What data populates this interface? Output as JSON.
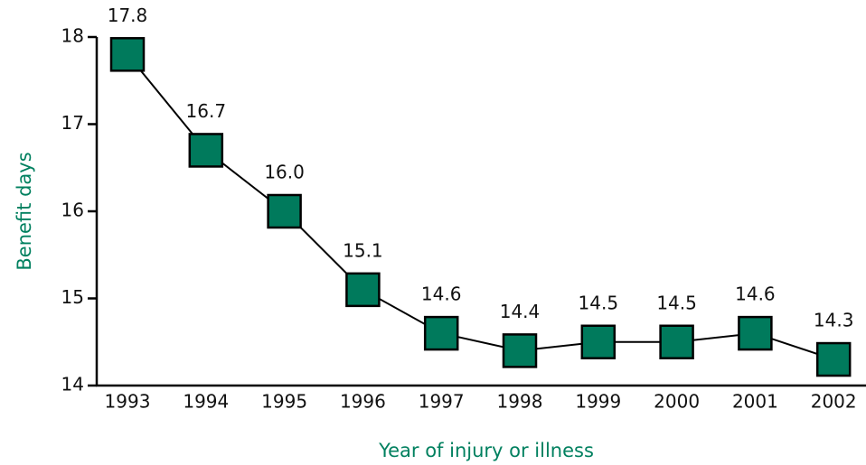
{
  "chart_data": {
    "type": "line",
    "x_label": "Year of injury or illness",
    "y_label": "Benefit days",
    "categories": [
      "1993",
      "1994",
      "1995",
      "1996",
      "1997",
      "1998",
      "1999",
      "2000",
      "2001",
      "2002"
    ],
    "values": [
      17.8,
      16.7,
      16.0,
      15.1,
      14.6,
      14.4,
      14.5,
      14.5,
      14.6,
      14.3
    ],
    "value_labels": [
      "17.8",
      "16.7",
      "16.0",
      "15.1",
      "14.6",
      "14.4",
      "14.5",
      "14.5",
      "14.6",
      "14.3"
    ],
    "color": "#007a5c",
    "label_color": "#00805f",
    "ylim": [
      14,
      18
    ],
    "yticks": [
      14,
      15,
      16,
      17,
      18
    ]
  }
}
